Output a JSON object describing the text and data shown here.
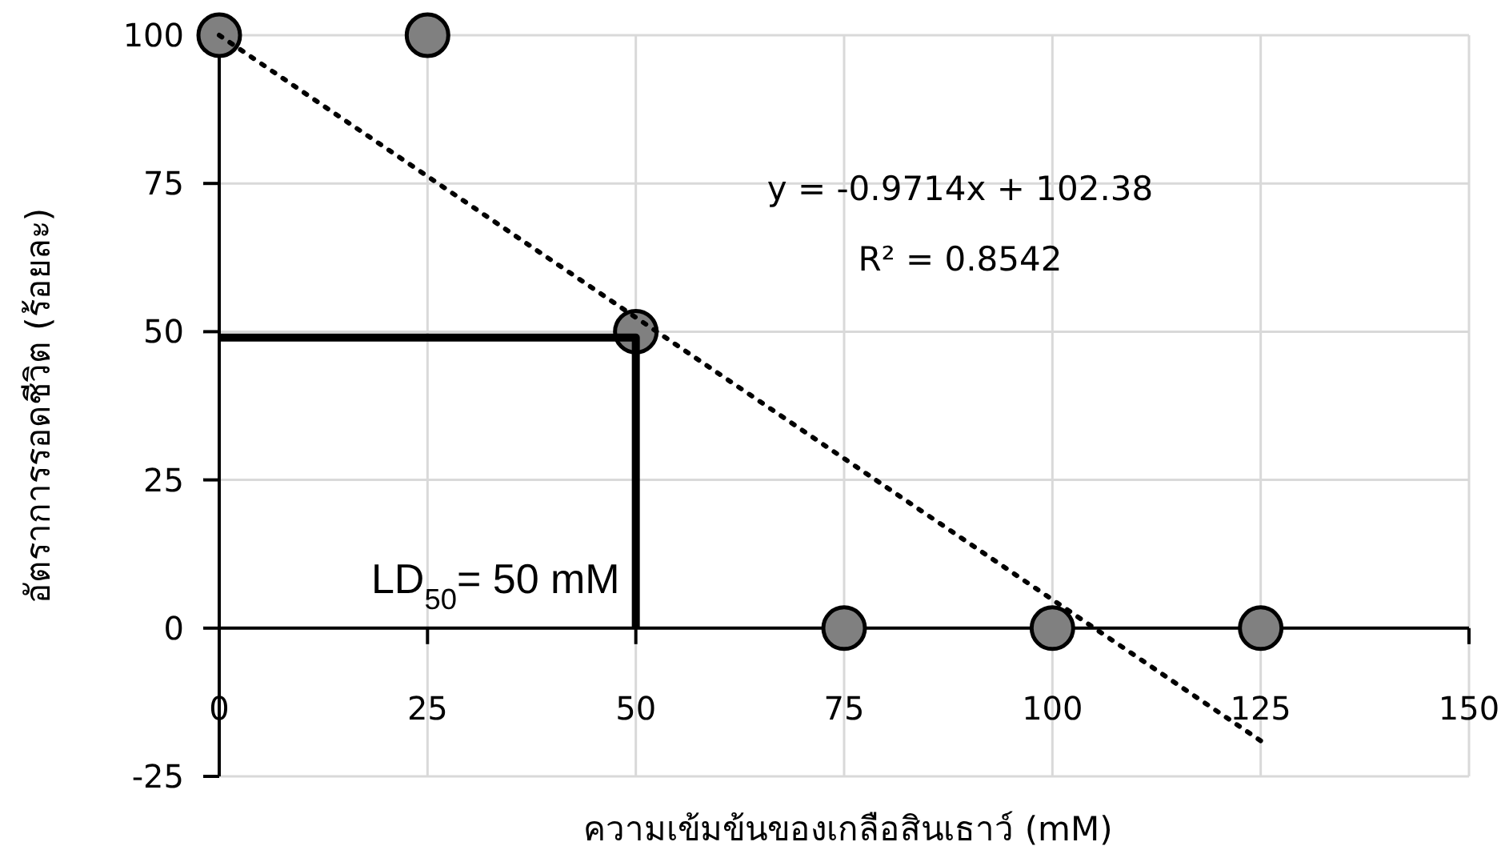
{
  "chart_data": {
    "type": "scatter",
    "xlabel": "ความเข้มข้นของเกลือสินเธาว์ (mM)",
    "ylabel": "อัตราการรอดชีวิต (ร้อยละ)",
    "xlim": [
      0,
      150
    ],
    "ylim": [
      -25,
      100
    ],
    "xticks": [
      0,
      25,
      50,
      75,
      100,
      125,
      150
    ],
    "yticks": [
      -25,
      0,
      25,
      50,
      75,
      100
    ],
    "grid": true,
    "series": [
      {
        "color": "#808080",
        "marker": "circle",
        "x": [
          0,
          25,
          50,
          75,
          100,
          125
        ],
        "values": [
          100,
          100,
          50,
          0,
          0,
          0
        ]
      },
      {
        "type": "line",
        "color": "#000000",
        "line_style": "dotted",
        "marker": "none",
        "x": [
          0,
          125
        ],
        "values": [
          100,
          -19
        ]
      },
      {
        "type": "line",
        "color": "#000000",
        "line_style": "solid",
        "marker": "none",
        "x": [
          0,
          50,
          50
        ],
        "values": [
          49,
          49,
          0
        ]
      }
    ],
    "annotations": [
      "y = -0.9714x + 102.38",
      "R² = 0.8542",
      {
        "text": "LD$_{50}$= 50 mM",
        "x": 50,
        "y": 0
      }
    ]
  }
}
